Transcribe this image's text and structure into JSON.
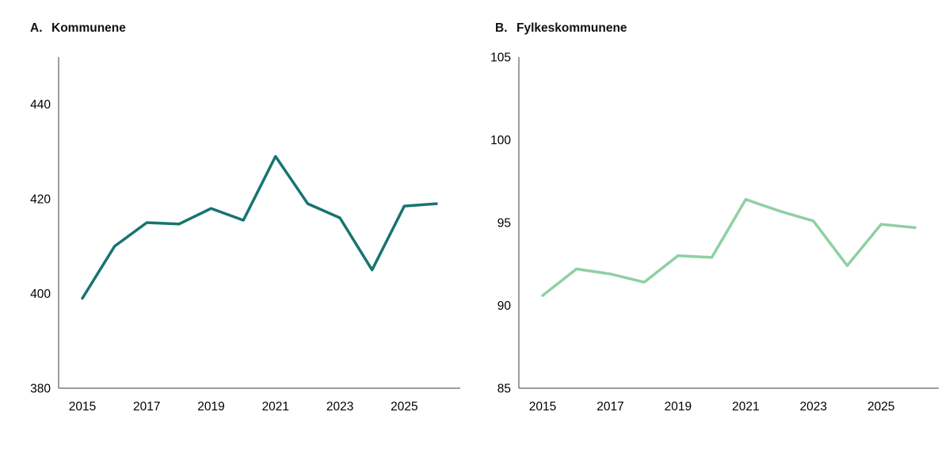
{
  "figure": {
    "background": "#ffffff",
    "axis_color": "#3d3d3d"
  },
  "chart_data": [
    {
      "type": "line",
      "panel_label": "A.",
      "title": "Kommunene",
      "x": [
        2015,
        2016,
        2017,
        2018,
        2019,
        2020,
        2021,
        2022,
        2023,
        2024,
        2025,
        2026
      ],
      "series": [
        {
          "name": "Kommunene",
          "color": "#17746F",
          "values": [
            399,
            410,
            415,
            414.7,
            418,
            415.5,
            429,
            419,
            416,
            405,
            418.5,
            419
          ]
        }
      ],
      "ylim": [
        380,
        450
      ],
      "yticks": [
        380,
        400,
        420,
        440
      ],
      "xticks": [
        2015,
        2017,
        2019,
        2021,
        2023,
        2025
      ],
      "grid": false,
      "legend": "none"
    },
    {
      "type": "line",
      "panel_label": "B.",
      "title": "Fylkeskommunene",
      "x": [
        2015,
        2016,
        2017,
        2018,
        2019,
        2020,
        2021,
        2022,
        2023,
        2024,
        2025,
        2026
      ],
      "series": [
        {
          "name": "Fylkeskommunene",
          "color": "#8FD0A2",
          "values": [
            90.6,
            92.2,
            91.9,
            91.4,
            93,
            92.9,
            96.4,
            95.7,
            95.1,
            92.4,
            94.9,
            94.7
          ]
        }
      ],
      "ylim": [
        85,
        105
      ],
      "yticks": [
        85,
        90,
        95,
        100,
        105
      ],
      "xticks": [
        2015,
        2017,
        2019,
        2021,
        2023,
        2025
      ],
      "grid": false,
      "legend": "none"
    }
  ]
}
